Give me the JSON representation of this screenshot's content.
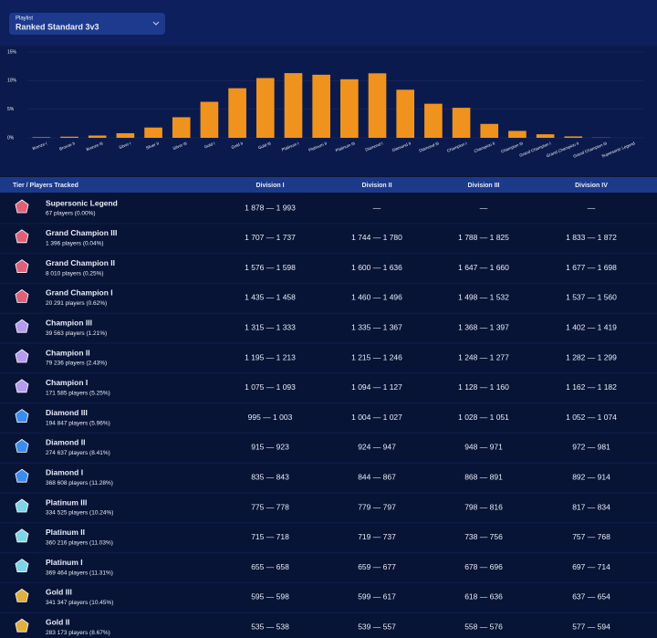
{
  "playlist": {
    "label": "Playlist",
    "value": "Ranked Standard 3v3"
  },
  "chart_data": {
    "type": "bar",
    "color": "#f0931e",
    "categories": [
      "Bronze I",
      "Bronze II",
      "Bronze III",
      "Silver I",
      "Silver II",
      "Silver III",
      "Gold I",
      "Gold II",
      "Gold III",
      "Platinum I",
      "Platinum II",
      "Platinum III",
      "Diamond I",
      "Diamond II",
      "Diamond III",
      "Champion I",
      "Champion II",
      "Champion III",
      "Grand Champion I",
      "Grand Champion II",
      "Grand Champion III",
      "Supersonic Legend"
    ],
    "values": [
      0.1,
      0.2,
      0.4,
      0.8,
      1.8,
      3.6,
      6.3,
      8.67,
      10.45,
      11.31,
      11.03,
      10.24,
      11.28,
      8.41,
      5.96,
      5.25,
      2.43,
      1.21,
      0.62,
      0.25,
      0.04,
      0.0
    ],
    "ylim": [
      0,
      15
    ],
    "yticks": [
      {
        "value": 0,
        "label": "0%"
      },
      {
        "value": 5,
        "label": "5%"
      },
      {
        "value": 10,
        "label": "10%"
      },
      {
        "value": 15,
        "label": "15%"
      }
    ],
    "grid": true
  },
  "table": {
    "columns": [
      "Tier / Players Tracked",
      "Division I",
      "Division II",
      "Division III",
      "Division IV"
    ],
    "rows": [
      {
        "tier": "Supersonic Legend",
        "players": "67 players (0.00%)",
        "divisions": [
          "1 878 — 1 993",
          "—",
          "—",
          "—"
        ]
      },
      {
        "tier": "Grand Champion III",
        "players": "1 396 players (0.04%)",
        "divisions": [
          "1 707 — 1 737",
          "1 744 — 1 780",
          "1 788 — 1 825",
          "1 833 — 1 872"
        ]
      },
      {
        "tier": "Grand Champion II",
        "players": "8 010 players (0.25%)",
        "divisions": [
          "1 576 — 1 598",
          "1 600 — 1 636",
          "1 647 — 1 660",
          "1 677 — 1 698"
        ]
      },
      {
        "tier": "Grand Champion I",
        "players": "20 291 players (0.62%)",
        "divisions": [
          "1 435 — 1 458",
          "1 460 — 1 496",
          "1 498 — 1 532",
          "1 537 — 1 560"
        ]
      },
      {
        "tier": "Champion III",
        "players": "39 563 players (1.21%)",
        "divisions": [
          "1 315 — 1 333",
          "1 335 — 1 367",
          "1 368 — 1 397",
          "1 402 — 1 419"
        ]
      },
      {
        "tier": "Champion II",
        "players": "79 236 players (2.43%)",
        "divisions": [
          "1 195 — 1 213",
          "1 215 — 1 246",
          "1 248 — 1 277",
          "1 282 — 1 299"
        ]
      },
      {
        "tier": "Champion I",
        "players": "171 585 players (5.25%)",
        "divisions": [
          "1 075 — 1 093",
          "1 094 — 1 127",
          "1 128 — 1 160",
          "1 162 — 1 182"
        ]
      },
      {
        "tier": "Diamond III",
        "players": "194 847 players (5.96%)",
        "divisions": [
          "995 — 1 003",
          "1 004 — 1 027",
          "1 028 — 1 051",
          "1 052 — 1 074"
        ]
      },
      {
        "tier": "Diamond II",
        "players": "274 637 players (8.41%)",
        "divisions": [
          "915 — 923",
          "924 — 947",
          "948 — 971",
          "972 — 981"
        ]
      },
      {
        "tier": "Diamond I",
        "players": "368 608 players (11.28%)",
        "divisions": [
          "835 — 843",
          "844 — 867",
          "868 — 891",
          "892 — 914"
        ]
      },
      {
        "tier": "Platinum III",
        "players": "334 525 players (10.24%)",
        "divisions": [
          "775 — 778",
          "779 — 797",
          "798 — 816",
          "817 — 834"
        ]
      },
      {
        "tier": "Platinum II",
        "players": "360 216 players (11.03%)",
        "divisions": [
          "715 — 718",
          "719 — 737",
          "738 — 756",
          "757 — 768"
        ]
      },
      {
        "tier": "Platinum I",
        "players": "369 464 players (11.31%)",
        "divisions": [
          "655 — 658",
          "659 — 677",
          "678 — 696",
          "697 — 714"
        ]
      },
      {
        "tier": "Gold III",
        "players": "341 347 players (10.45%)",
        "divisions": [
          "595 — 598",
          "599 — 617",
          "618 — 636",
          "637 — 654"
        ]
      },
      {
        "tier": "Gold II",
        "players": "283 173 players (8.67%)",
        "divisions": [
          "535 — 538",
          "539 — 557",
          "558 — 576",
          "577 — 594"
        ]
      }
    ]
  }
}
